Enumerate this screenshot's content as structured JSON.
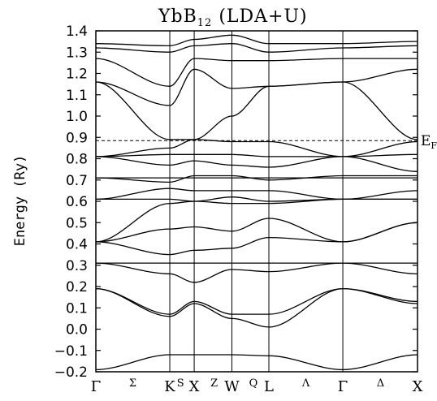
{
  "chart_data": {
    "type": "line",
    "title_main": "YbB",
    "title_sub": "12",
    "title_tail": " (LDA+U)",
    "ylabel": "Energy (Ry)",
    "ylim": [
      -0.2,
      1.4
    ],
    "yticks": [
      -0.2,
      -0.1,
      0.0,
      0.1,
      0.2,
      0.3,
      0.4,
      0.5,
      0.6,
      0.7,
      0.8,
      0.9,
      1.0,
      1.1,
      1.2,
      1.3,
      1.4
    ],
    "ytick_labels": [
      "−0.2",
      "−0.1",
      "0.0",
      "0.1",
      "0.2",
      "0.3",
      "0.4",
      "0.5",
      "0.6",
      "0.7",
      "0.8",
      "0.9",
      "1.0",
      "1.1",
      "1.2",
      "1.3",
      "1.4"
    ],
    "k_points": [
      "Γ",
      "K",
      "X",
      "W",
      "L",
      "Γ",
      "X"
    ],
    "k_positions": [
      0,
      1.0,
      1.33,
      1.84,
      2.34,
      3.34,
      4.35
    ],
    "segment_labels": [
      {
        "label": "Σ",
        "x": 0.5
      },
      {
        "label": "S",
        "x": 1.145
      },
      {
        "label": "Z",
        "x": 1.6
      },
      {
        "label": "Q",
        "x": 2.13
      },
      {
        "label": "Λ",
        "x": 2.84
      },
      {
        "label": "Δ",
        "x": 3.85
      }
    ],
    "fermi_level": 0.885,
    "fermi_label": "E",
    "fermi_sub": "F",
    "series": [
      {
        "values": [
          -0.19,
          -0.12,
          -0.12,
          -0.12,
          -0.125,
          -0.19,
          -0.12
        ]
      },
      {
        "values": [
          0.19,
          0.06,
          0.12,
          0.05,
          0.01,
          0.19,
          0.12
        ]
      },
      {
        "values": [
          0.19,
          0.07,
          0.13,
          0.07,
          0.07,
          0.19,
          0.13
        ]
      },
      {
        "values": [
          0.31,
          0.26,
          0.22,
          0.28,
          0.27,
          0.31,
          0.26
        ]
      },
      {
        "values": [
          0.31,
          0.31,
          0.31,
          0.31,
          0.31,
          0.31,
          0.31
        ]
      },
      {
        "values": [
          0.41,
          0.35,
          0.37,
          0.38,
          0.43,
          0.41,
          0.5
        ]
      },
      {
        "values": [
          0.41,
          0.47,
          0.48,
          0.46,
          0.52,
          0.41,
          0.5
        ]
      },
      {
        "values": [
          0.41,
          0.59,
          0.6,
          0.59,
          0.59,
          0.61,
          0.61
        ]
      },
      {
        "values": [
          0.61,
          0.61,
          0.6,
          0.62,
          0.6,
          0.61,
          0.61
        ]
      },
      {
        "values": [
          0.61,
          0.66,
          0.65,
          0.65,
          0.65,
          0.61,
          0.65
        ]
      },
      {
        "values": [
          0.71,
          0.71,
          0.71,
          0.71,
          0.71,
          0.71,
          0.71
        ]
      },
      {
        "values": [
          0.71,
          0.69,
          0.72,
          0.72,
          0.7,
          0.72,
          0.72
        ]
      },
      {
        "values": [
          0.81,
          0.77,
          0.79,
          0.77,
          0.76,
          0.81,
          0.74
        ]
      },
      {
        "values": [
          0.81,
          0.82,
          0.82,
          0.82,
          0.81,
          0.81,
          0.82
        ]
      },
      {
        "values": [
          0.81,
          0.85,
          0.89,
          0.88,
          0.88,
          0.81,
          0.88
        ]
      },
      {
        "values": [
          1.16,
          0.89,
          0.89,
          1.0,
          1.14,
          1.16,
          0.89
        ]
      },
      {
        "values": [
          1.16,
          1.05,
          1.22,
          1.13,
          1.14,
          1.16,
          1.22
        ]
      },
      {
        "values": [
          1.27,
          1.14,
          1.27,
          1.26,
          1.26,
          1.27,
          1.27
        ]
      },
      {
        "values": [
          1.32,
          1.3,
          1.33,
          1.34,
          1.3,
          1.32,
          1.33
        ]
      },
      {
        "values": [
          1.34,
          1.33,
          1.36,
          1.38,
          1.34,
          1.34,
          1.35
        ]
      }
    ]
  }
}
